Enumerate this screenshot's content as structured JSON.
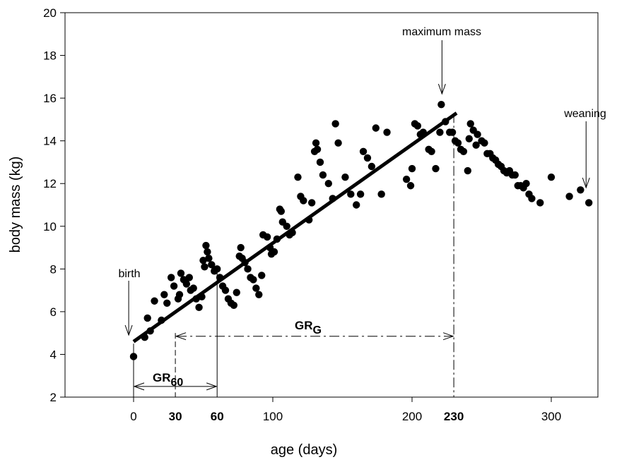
{
  "chart_data": {
    "type": "scatter",
    "xlabel": "age (days)",
    "ylabel": "body mass (kg)",
    "xlim": [
      -50,
      365
    ],
    "ylim": [
      2,
      20
    ],
    "x_ticks": [
      0,
      100,
      200,
      300
    ],
    "x_ticks_bold": [
      30,
      60,
      230
    ],
    "y_ticks": [
      2,
      4,
      6,
      8,
      10,
      12,
      14,
      16,
      18,
      20
    ],
    "grid": false,
    "points": [
      [
        0,
        3.9
      ],
      [
        8,
        4.8
      ],
      [
        12,
        5.1
      ],
      [
        10,
        5.7
      ],
      [
        15,
        6.5
      ],
      [
        20,
        5.6
      ],
      [
        22,
        6.8
      ],
      [
        24,
        6.4
      ],
      [
        27,
        7.6
      ],
      [
        29,
        7.2
      ],
      [
        32,
        6.6
      ],
      [
        33,
        6.8
      ],
      [
        34,
        7.8
      ],
      [
        36,
        7.5
      ],
      [
        38,
        7.3
      ],
      [
        40,
        7.6
      ],
      [
        41,
        7.0
      ],
      [
        43,
        7.1
      ],
      [
        45,
        6.6
      ],
      [
        47,
        6.2
      ],
      [
        49,
        6.7
      ],
      [
        50,
        8.4
      ],
      [
        51,
        8.1
      ],
      [
        52,
        9.1
      ],
      [
        53,
        8.8
      ],
      [
        54,
        8.5
      ],
      [
        56,
        8.2
      ],
      [
        58,
        7.9
      ],
      [
        60,
        8.0
      ],
      [
        62,
        7.6
      ],
      [
        64,
        7.2
      ],
      [
        66,
        7.0
      ],
      [
        68,
        6.6
      ],
      [
        70,
        6.4
      ],
      [
        72,
        6.3
      ],
      [
        74,
        6.9
      ],
      [
        76,
        8.6
      ],
      [
        77,
        9.0
      ],
      [
        78,
        8.5
      ],
      [
        80,
        8.3
      ],
      [
        82,
        8.0
      ],
      [
        84,
        7.6
      ],
      [
        86,
        7.5
      ],
      [
        88,
        7.1
      ],
      [
        90,
        6.8
      ],
      [
        92,
        7.7
      ],
      [
        93,
        9.6
      ],
      [
        96,
        9.5
      ],
      [
        98,
        9.0
      ],
      [
        99,
        8.7
      ],
      [
        101,
        8.8
      ],
      [
        103,
        9.4
      ],
      [
        105,
        10.8
      ],
      [
        106,
        10.7
      ],
      [
        107,
        10.2
      ],
      [
        110,
        10.0
      ],
      [
        112,
        9.6
      ],
      [
        114,
        9.7
      ],
      [
        118,
        12.3
      ],
      [
        120,
        11.4
      ],
      [
        122,
        11.2
      ],
      [
        126,
        10.3
      ],
      [
        128,
        11.1
      ],
      [
        130,
        13.5
      ],
      [
        131,
        13.9
      ],
      [
        132,
        13.6
      ],
      [
        134,
        13.0
      ],
      [
        136,
        12.4
      ],
      [
        140,
        12.0
      ],
      [
        143,
        11.3
      ],
      [
        145,
        14.8
      ],
      [
        147,
        13.9
      ],
      [
        152,
        12.3
      ],
      [
        156,
        11.5
      ],
      [
        160,
        11.0
      ],
      [
        163,
        11.5
      ],
      [
        165,
        13.5
      ],
      [
        168,
        13.2
      ],
      [
        171,
        12.8
      ],
      [
        174,
        14.6
      ],
      [
        178,
        11.5
      ],
      [
        182,
        14.4
      ],
      [
        196,
        12.2
      ],
      [
        199,
        11.9
      ],
      [
        200,
        12.7
      ],
      [
        202,
        14.8
      ],
      [
        204,
        14.7
      ],
      [
        206,
        14.3
      ],
      [
        208,
        14.4
      ],
      [
        212,
        13.6
      ],
      [
        214,
        13.5
      ],
      [
        217,
        12.7
      ],
      [
        220,
        14.4
      ],
      [
        221,
        15.7
      ],
      [
        224,
        14.9
      ],
      [
        227,
        14.4
      ],
      [
        229,
        14.4
      ],
      [
        231,
        14.0
      ],
      [
        233,
        13.9
      ],
      [
        235,
        13.6
      ],
      [
        237,
        13.5
      ],
      [
        240,
        12.6
      ],
      [
        241,
        14.1
      ],
      [
        242,
        14.8
      ],
      [
        244,
        14.5
      ],
      [
        246,
        13.8
      ],
      [
        247,
        14.3
      ],
      [
        250,
        14.0
      ],
      [
        252,
        13.9
      ],
      [
        254,
        13.4
      ],
      [
        256,
        13.4
      ],
      [
        258,
        13.2
      ],
      [
        260,
        13.1
      ],
      [
        262,
        12.9
      ],
      [
        264,
        12.8
      ],
      [
        266,
        12.6
      ],
      [
        268,
        12.5
      ],
      [
        270,
        12.6
      ],
      [
        272,
        12.4
      ],
      [
        274,
        12.4
      ],
      [
        276,
        11.9
      ],
      [
        278,
        11.9
      ],
      [
        280,
        11.8
      ],
      [
        282,
        12.0
      ],
      [
        284,
        11.5
      ],
      [
        286,
        11.3
      ],
      [
        292,
        11.1
      ],
      [
        300,
        12.3
      ],
      [
        313,
        11.4
      ],
      [
        321,
        11.7
      ],
      [
        327,
        11.1
      ]
    ],
    "regression_line": {
      "x": [
        0,
        232
      ],
      "y": [
        4.6,
        15.3
      ]
    },
    "annotations": {
      "birth": "birth",
      "maximum_mass": "maximum mass",
      "weaning": "weaning",
      "gr60_main": "GR",
      "gr60_sub": "60",
      "grg_main": "GR",
      "grg_sub": "G"
    }
  }
}
